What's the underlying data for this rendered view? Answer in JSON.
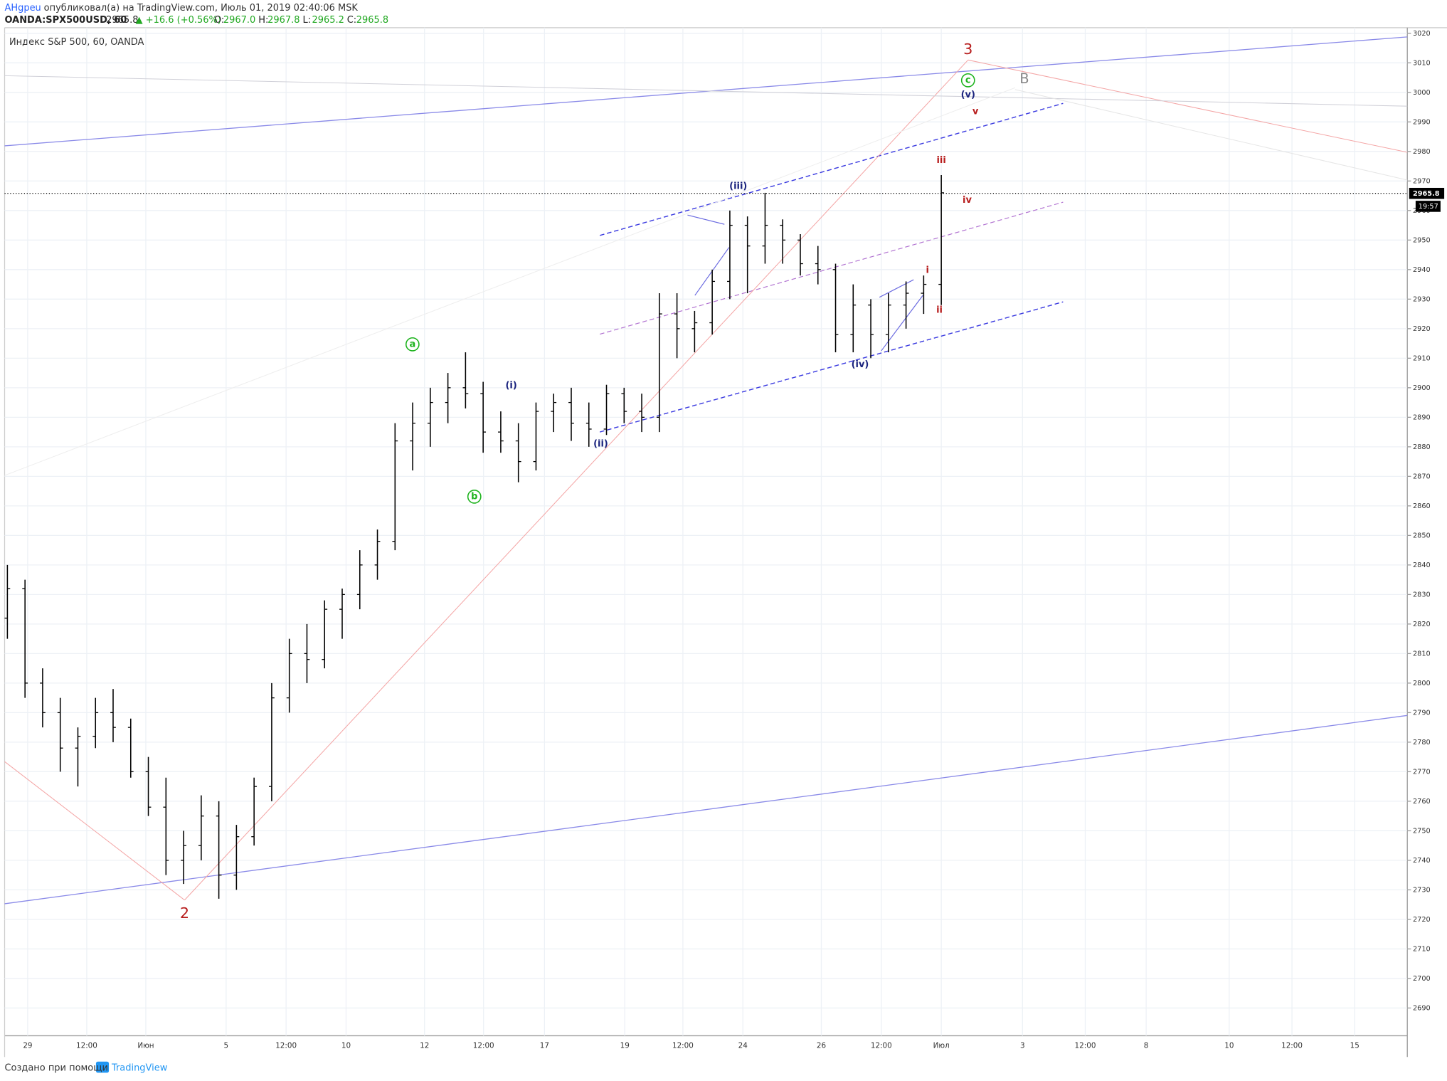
{
  "header": {
    "author": "AHgpeu",
    "published": "опубликовал(а) на TradingView.com, Июль 01, 2019 02:40:06 MSK",
    "symbol": "OANDA:SPX500USD, 60",
    "change": "▲ +16.6 (+0.56%)",
    "ohlc": [
      [
        "O:",
        "2967.0"
      ],
      [
        "H:",
        "2967.8"
      ],
      [
        "L:",
        "2965.2"
      ],
      [
        "C:",
        "2965.8"
      ]
    ]
  },
  "footer": {
    "text": "Создано при помощи",
    "brand": "TradingView"
  },
  "chart_data": {
    "type": "ohlc",
    "title": "Индекс S&P 500, 60, OANDA",
    "color": "#000000",
    "open": [
      2822,
      2832,
      2800,
      2790,
      2778,
      2782,
      2790,
      2785,
      2770,
      2758,
      2740,
      2745,
      2755,
      2735,
      2748,
      2765,
      2795,
      2810,
      2808,
      2825,
      2830,
      2840,
      2848,
      2882,
      2888,
      2895,
      2900,
      2898,
      2885,
      2882,
      2875,
      2892,
      2895,
      2888,
      2886,
      2898,
      2892,
      2890,
      2925,
      2920,
      2922,
      2936,
      2955,
      2948,
      2955,
      2950,
      2942,
      2940,
      2918,
      2928,
      2918,
      2928,
      2932,
      2935
    ],
    "high": [
      2840,
      2835,
      2805,
      2795,
      2785,
      2795,
      2798,
      2788,
      2775,
      2768,
      2750,
      2762,
      2760,
      2752,
      2768,
      2800,
      2815,
      2820,
      2828,
      2832,
      2845,
      2852,
      2888,
      2895,
      2900,
      2905,
      2912,
      2902,
      2892,
      2888,
      2895,
      2898,
      2900,
      2895,
      2901,
      2900,
      2898,
      2932,
      2932,
      2926,
      2940,
      2960,
      2958,
      2966,
      2957,
      2952,
      2948,
      2942,
      2935,
      2930,
      2932,
      2936,
      2938,
      2972
    ],
    "low": [
      2815,
      2795,
      2785,
      2770,
      2765,
      2778,
      2780,
      2768,
      2755,
      2735,
      2732,
      2740,
      2727,
      2730,
      2745,
      2760,
      2790,
      2800,
      2805,
      2815,
      2825,
      2835,
      2845,
      2872,
      2880,
      2888,
      2893,
      2878,
      2878,
      2868,
      2872,
      2885,
      2882,
      2880,
      2884,
      2888,
      2885,
      2885,
      2910,
      2912,
      2918,
      2930,
      2932,
      2942,
      2942,
      2938,
      2935,
      2912,
      2912,
      2910,
      2912,
      2920,
      2925,
      2928
    ],
    "close": [
      2832,
      2800,
      2790,
      2778,
      2782,
      2790,
      2785,
      2770,
      2758,
      2740,
      2745,
      2755,
      2735,
      2748,
      2765,
      2795,
      2810,
      2808,
      2825,
      2830,
      2840,
      2848,
      2882,
      2888,
      2895,
      2900,
      2898,
      2885,
      2882,
      2875,
      2892,
      2895,
      2888,
      2886,
      2898,
      2892,
      2890,
      2925,
      2920,
      2922,
      2936,
      2955,
      2948,
      2955,
      2950,
      2942,
      2940,
      2918,
      2928,
      2918,
      2928,
      2932,
      2935,
      2966
    ],
    "last_price": 2965.8,
    "countdown": "19:57",
    "ylim": [
      2680.6,
      3021.9
    ],
    "yticks": [
      2690,
      2700,
      2710,
      2720,
      2730,
      2740,
      2750,
      2760,
      2770,
      2780,
      2790,
      2800,
      2810,
      2820,
      2830,
      2840,
      2850,
      2860,
      2870,
      2880,
      2890,
      2900,
      2910,
      2920,
      2930,
      2940,
      2950,
      2960,
      2970,
      2980,
      2990,
      3000,
      3010,
      3020
    ],
    "time_labels": [
      "29",
      "12:00",
      "Июн",
      "5",
      "12:00",
      "10",
      "12",
      "12:00",
      "17",
      "19",
      "12:00",
      "24",
      "26",
      "12:00",
      "Июл",
      "3",
      "12:00",
      "8",
      "10",
      "12:00",
      "15"
    ],
    "grid": true,
    "annotations": [
      {
        "text": "3",
        "color": "#b71c1c"
      },
      {
        "text": "c",
        "color": "#1db31d"
      },
      {
        "text": "B",
        "color": "#888888"
      },
      {
        "text": "(v)",
        "color": "#1a237e"
      },
      {
        "text": "v",
        "color": "#b71c1c"
      },
      {
        "text": "iii",
        "color": "#b71c1c"
      },
      {
        "text": "iv",
        "color": "#b71c1c"
      },
      {
        "text": "i",
        "color": "#b71c1c"
      },
      {
        "text": "ii",
        "color": "#b71c1c"
      },
      {
        "text": "(iii)",
        "color": "#1a237e"
      },
      {
        "text": "(iv)",
        "color": "#1a237e"
      },
      {
        "text": "(ii)",
        "color": "#1a237e"
      },
      {
        "text": "(i)",
        "color": "#1a237e"
      },
      {
        "text": "a",
        "color": "#1db31d"
      },
      {
        "text": "b",
        "color": "#1db31d"
      },
      {
        "text": "2",
        "color": "#b71c1c"
      }
    ]
  }
}
